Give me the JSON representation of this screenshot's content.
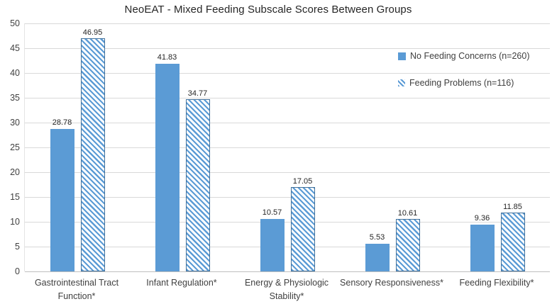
{
  "chart_data": {
    "type": "bar",
    "title": "NeoEAT - Mixed Feeding Subscale Scores Between Groups",
    "categories": [
      "Gastrointestinal Tract Function*",
      "Infant Regulation*",
      "Energy & Physiologic Stability*",
      "Sensory Responsiveness*",
      "Feeding Flexibility*"
    ],
    "series": [
      {
        "name": "No Feeding Concerns (n=260)",
        "fill": "solid",
        "values": [
          28.78,
          41.83,
          10.57,
          5.53,
          9.36
        ]
      },
      {
        "name": "Feeding Problems (n=116)",
        "fill": "hatch",
        "values": [
          46.95,
          34.77,
          17.05,
          10.61,
          11.85
        ]
      }
    ],
    "ylim": [
      0,
      50
    ],
    "ytick_step": 5,
    "grid": true,
    "legend_position": "right",
    "value_label_decimals": 2
  },
  "colors": {
    "accent": "#5b9bd5",
    "hatch_border": "#41719c",
    "gridline": "#d9d9d9",
    "zero_line": "#bfbfbf",
    "axis_text": "#404040",
    "title_text": "#262626",
    "value_label_text": "#262626"
  }
}
